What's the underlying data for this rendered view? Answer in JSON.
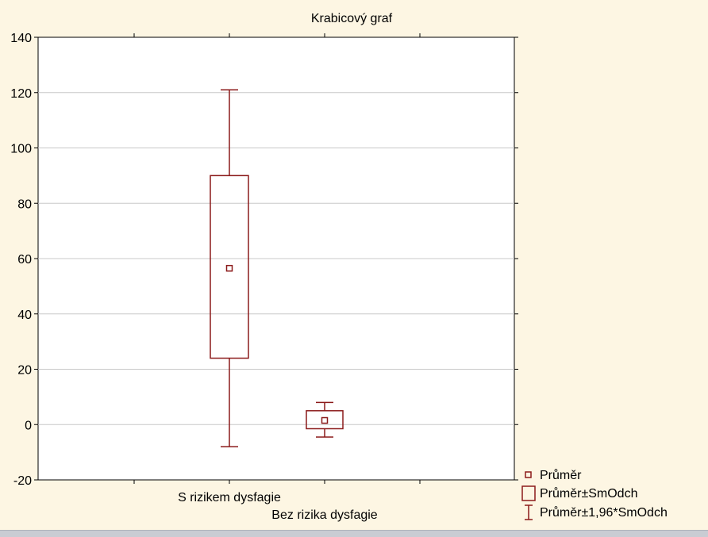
{
  "chart_data": {
    "type": "box",
    "title": "Krabicový graf",
    "xlabel": "",
    "ylabel": "",
    "ylim": [
      -20,
      140
    ],
    "yticks": [
      -20,
      0,
      20,
      40,
      60,
      80,
      100,
      120,
      140
    ],
    "grid": true,
    "categories": [
      "S rizikem dysfagie",
      "Bez rizika dysfagie"
    ],
    "series": [
      {
        "category": "S rizikem dysfagie",
        "mean": 56.5,
        "sd_low": 24,
        "sd_high": 90,
        "ci_low": -8,
        "ci_high": 121
      },
      {
        "category": "Bez rizika dysfagie",
        "mean": 1.5,
        "sd_low": -1.5,
        "sd_high": 5,
        "ci_low": -4.5,
        "ci_high": 8
      }
    ],
    "legend": {
      "position": "bottom-right",
      "entries": [
        "Průměr",
        "Průměr±SmOdch",
        "Průměr±1,96*SmOdch"
      ]
    },
    "colors": {
      "marks": "#8b1a1a",
      "grid": "#c8c8c8",
      "plot_bg": "#ffffff",
      "page_bg": "#fdf6e3"
    }
  }
}
